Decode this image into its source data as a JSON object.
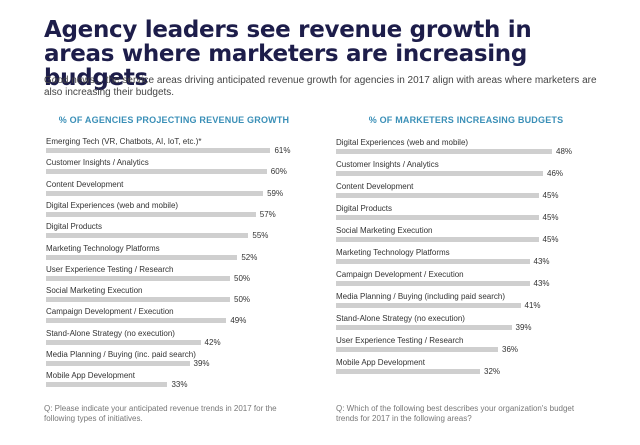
{
  "title": "Agency leaders see revenue growth in areas where marketers are increasing budgets",
  "subtitle": "Good news... the service areas driving anticipated revenue growth for agencies in 2017 align with areas where marketers are also increasing their budgets.",
  "chart_data": [
    {
      "type": "bar",
      "title": "% OF AGENCIES PROJECTING REVENUE GROWTH",
      "orientation": "horizontal",
      "categories": [
        "Emerging Tech (VR, Chatbots, AI, IoT, etc.)*",
        "Customer Insights / Analytics",
        "Content Development",
        "Digital Experiences (web and mobile)",
        "Digital Products",
        "Marketing Technology Platforms",
        "User Experience Testing / Research",
        "Social Marketing Execution",
        "Campaign Development / Execution",
        "Stand-Alone Strategy (no execution)",
        "Media Planning / Buying (inc. paid search)",
        "Mobile App Development"
      ],
      "values": [
        61,
        60,
        59,
        57,
        55,
        52,
        50,
        50,
        49,
        42,
        39,
        33
      ],
      "labels": [
        "61%",
        "60%",
        "59%",
        "57%",
        "55%",
        "52%",
        "50%",
        "50%",
        "49%",
        "42%",
        "39%",
        "33%"
      ],
      "question": "Q: Please indicate your anticipated revenue trends in 2017 for the following types of initiatives.",
      "bar_color": "#cfcfcf",
      "header_color": "#3a8fb7"
    },
    {
      "type": "bar",
      "title": "% OF MARKETERS INCREASING BUDGETS",
      "orientation": "horizontal",
      "categories": [
        "Digital Experiences (web and mobile)",
        "Customer Insights / Analytics",
        "Content Development",
        "Digital Products",
        "Social Marketing Execution",
        "Marketing Technology Platforms",
        "Campaign Development / Execution",
        "Media Planning / Buying (including paid search)",
        "Stand-Alone Strategy (no execution)",
        "User Experience Testing / Research",
        "Mobile App Development"
      ],
      "values": [
        48,
        46,
        45,
        45,
        45,
        43,
        43,
        41,
        39,
        36,
        32
      ],
      "labels": [
        "48%",
        "46%",
        "45%",
        "45%",
        "45%",
        "43%",
        "43%",
        "41%",
        "39%",
        "36%",
        "32%"
      ],
      "question": "Q: Which of the following best describes your organization's budget trends for 2017 in the following areas?",
      "bar_color": "#cfcfcf",
      "header_color": "#3a8fb7"
    }
  ]
}
